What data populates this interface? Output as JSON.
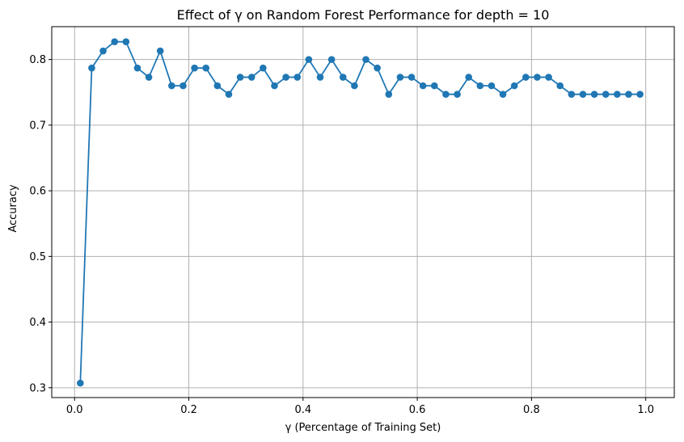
{
  "chart_data": {
    "type": "line",
    "title": "Effect of γ on Random Forest Performance for depth = 10",
    "xlabel": "γ (Percentage of Training Set)",
    "ylabel": "Accuracy",
    "xlim": [
      -0.04,
      1.05
    ],
    "ylim": [
      0.285,
      0.85
    ],
    "grid": true,
    "xticks": [
      0.0,
      0.2,
      0.4,
      0.6,
      0.8,
      1.0
    ],
    "xtick_labels": [
      "0.0",
      "0.2",
      "0.4",
      "0.6",
      "0.8",
      "1.0"
    ],
    "yticks": [
      0.3,
      0.4,
      0.5,
      0.6,
      0.7,
      0.8
    ],
    "ytick_labels": [
      "0.3",
      "0.4",
      "0.5",
      "0.6",
      "0.7",
      "0.8"
    ],
    "series": [
      {
        "color": "#1f77b4",
        "marker": "circle",
        "x": [
          0.01,
          0.03,
          0.05,
          0.07,
          0.09,
          0.11,
          0.13,
          0.15,
          0.17,
          0.19,
          0.21,
          0.23,
          0.25,
          0.27,
          0.29,
          0.31,
          0.33,
          0.35,
          0.37,
          0.39,
          0.41,
          0.43,
          0.45,
          0.47,
          0.49,
          0.51,
          0.53,
          0.55,
          0.57,
          0.59,
          0.61,
          0.63,
          0.65,
          0.67,
          0.69,
          0.71,
          0.73,
          0.75,
          0.77,
          0.79,
          0.81,
          0.83,
          0.85,
          0.87,
          0.89,
          0.91,
          0.93,
          0.95,
          0.97,
          0.99
        ],
        "values": [
          0.307,
          0.787,
          0.813,
          0.827,
          0.827,
          0.787,
          0.773,
          0.813,
          0.76,
          0.76,
          0.787,
          0.787,
          0.76,
          0.747,
          0.773,
          0.773,
          0.787,
          0.76,
          0.773,
          0.773,
          0.8,
          0.773,
          0.8,
          0.773,
          0.76,
          0.8,
          0.787,
          0.747,
          0.773,
          0.773,
          0.76,
          0.76,
          0.747,
          0.747,
          0.773,
          0.76,
          0.76,
          0.747,
          0.76,
          0.773,
          0.773,
          0.773,
          0.76,
          0.747,
          0.747,
          0.747,
          0.747,
          0.747,
          0.747,
          0.747
        ]
      }
    ]
  }
}
